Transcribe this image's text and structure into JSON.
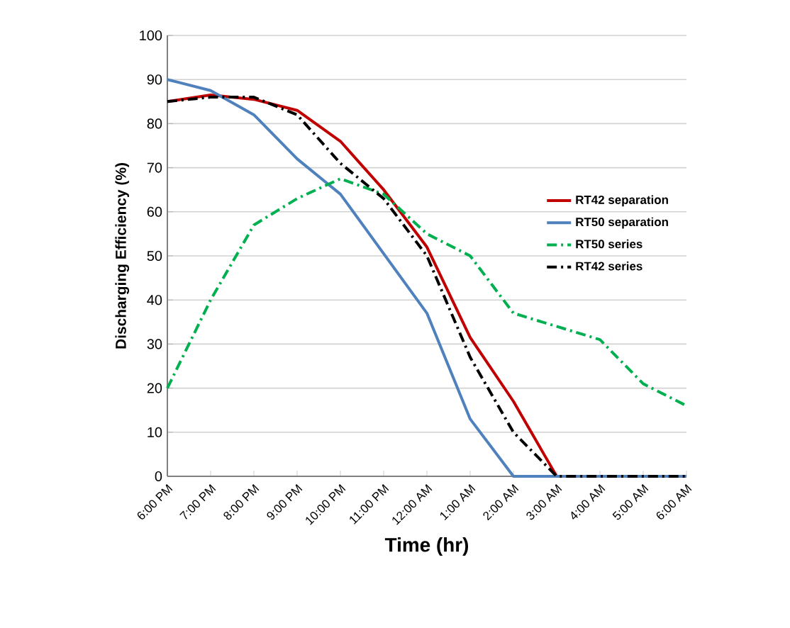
{
  "chart_data": {
    "type": "line",
    "xlabel": "Time (hr)",
    "ylabel": "Discharging Efficiency (%)",
    "categories": [
      "6:00 PM",
      "7:00 PM",
      "8:00 PM",
      "9:00 PM",
      "10:00 PM",
      "11:00 PM",
      "12:00 AM",
      "1:00 AM",
      "2:00 AM",
      "3:00 AM",
      "4:00 AM",
      "5:00 AM",
      "6:00 AM"
    ],
    "series": [
      {
        "name": "RT42 separation",
        "color": "#c00000",
        "line_style": "solid",
        "values": [
          85,
          86.5,
          85.5,
          83,
          76,
          65,
          52,
          31.5,
          17,
          0,
          0,
          null,
          null
        ]
      },
      {
        "name": "RT50 separation",
        "color": "#4f81bd",
        "line_style": "solid",
        "values": [
          90,
          87.5,
          82,
          72,
          64,
          50.5,
          37,
          13,
          0,
          0,
          0,
          0,
          0
        ]
      },
      {
        "name": "RT50 series",
        "color": "#00b050",
        "line_style": "dashdot",
        "values": [
          20,
          40,
          57,
          63,
          67.5,
          64,
          55,
          50,
          37,
          34,
          31,
          21,
          16
        ]
      },
      {
        "name": "RT42 series",
        "color": "#000000",
        "line_style": "dashdot",
        "values": [
          85,
          86,
          86,
          82,
          71,
          63,
          50,
          27,
          10,
          0,
          0,
          0,
          0
        ]
      }
    ],
    "ylim": [
      0,
      100
    ],
    "yticks": [
      0,
      10,
      20,
      30,
      40,
      50,
      60,
      70,
      80,
      90,
      100
    ],
    "grid": "y",
    "legend": "right"
  }
}
